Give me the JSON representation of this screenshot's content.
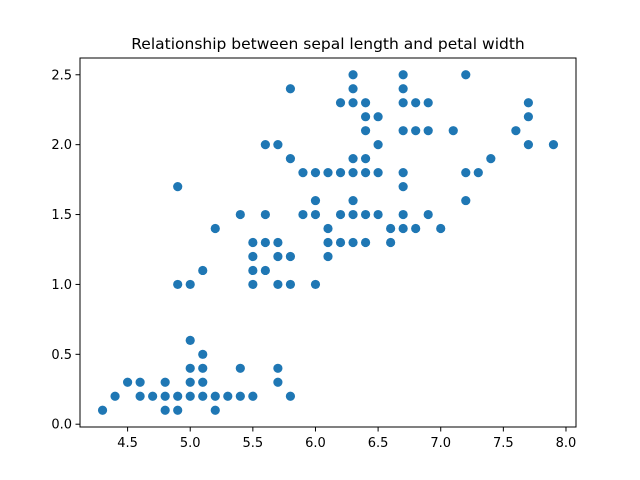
{
  "chart_data": {
    "type": "scatter",
    "title": "Relationship between sepal length and petal width",
    "xlabel": "",
    "ylabel": "",
    "xlim": [
      4.12,
      8.08
    ],
    "ylim": [
      -0.02,
      2.62
    ],
    "xticks": [
      4.5,
      5.0,
      5.5,
      6.0,
      6.5,
      7.0,
      7.5,
      8.0
    ],
    "xtick_labels": [
      "4.5",
      "5.0",
      "5.5",
      "6.0",
      "6.5",
      "7.0",
      "7.5",
      "8.0"
    ],
    "yticks": [
      0.0,
      0.5,
      1.0,
      1.5,
      2.0,
      2.5
    ],
    "ytick_labels": [
      "0.0",
      "0.5",
      "1.0",
      "1.5",
      "2.0",
      "2.5"
    ],
    "grid": false,
    "color": "#1f77b4",
    "series": [
      {
        "points": [
          [
            4.3,
            0.1
          ],
          [
            4.4,
            0.2
          ],
          [
            4.5,
            0.3
          ],
          [
            4.6,
            0.2
          ],
          [
            4.6,
            0.3
          ],
          [
            4.7,
            0.2
          ],
          [
            4.8,
            0.1
          ],
          [
            4.8,
            0.2
          ],
          [
            4.8,
            0.3
          ],
          [
            4.9,
            0.1
          ],
          [
            4.9,
            0.2
          ],
          [
            5.0,
            0.2
          ],
          [
            5.0,
            0.3
          ],
          [
            5.0,
            0.4
          ],
          [
            5.0,
            0.6
          ],
          [
            5.1,
            0.2
          ],
          [
            5.1,
            0.3
          ],
          [
            5.1,
            0.4
          ],
          [
            5.1,
            0.5
          ],
          [
            5.2,
            0.1
          ],
          [
            5.2,
            0.2
          ],
          [
            5.3,
            0.2
          ],
          [
            5.4,
            0.2
          ],
          [
            5.4,
            0.4
          ],
          [
            5.5,
            0.2
          ],
          [
            5.7,
            0.3
          ],
          [
            5.7,
            0.4
          ],
          [
            5.8,
            0.2
          ],
          [
            4.9,
            1.0
          ],
          [
            5.0,
            1.0
          ],
          [
            5.1,
            1.1
          ],
          [
            5.5,
            1.0
          ],
          [
            5.5,
            1.1
          ],
          [
            5.5,
            1.2
          ],
          [
            5.5,
            1.3
          ],
          [
            5.6,
            1.1
          ],
          [
            5.6,
            1.3
          ],
          [
            5.7,
            1.0
          ],
          [
            5.7,
            1.2
          ],
          [
            5.7,
            1.3
          ],
          [
            5.8,
            1.0
          ],
          [
            5.8,
            1.2
          ],
          [
            6.0,
            1.0
          ],
          [
            6.1,
            1.2
          ],
          [
            6.1,
            1.3
          ],
          [
            6.1,
            1.4
          ],
          [
            6.2,
            1.3
          ],
          [
            6.3,
            1.3
          ],
          [
            6.4,
            1.3
          ],
          [
            6.6,
            1.3
          ],
          [
            6.6,
            1.4
          ],
          [
            6.7,
            1.4
          ],
          [
            6.8,
            1.4
          ],
          [
            7.0,
            1.4
          ],
          [
            5.2,
            1.4
          ],
          [
            6.3,
            1.6
          ],
          [
            5.4,
            1.5
          ],
          [
            5.6,
            1.5
          ],
          [
            5.9,
            1.5
          ],
          [
            6.0,
            1.5
          ],
          [
            6.2,
            1.5
          ],
          [
            6.3,
            1.5
          ],
          [
            6.4,
            1.5
          ],
          [
            6.5,
            1.5
          ],
          [
            6.7,
            1.5
          ],
          [
            6.9,
            1.5
          ],
          [
            6.0,
            1.6
          ],
          [
            7.2,
            1.6
          ],
          [
            4.9,
            1.7
          ],
          [
            6.7,
            1.7
          ],
          [
            5.9,
            1.8
          ],
          [
            6.0,
            1.8
          ],
          [
            6.1,
            1.8
          ],
          [
            6.2,
            1.8
          ],
          [
            6.3,
            1.8
          ],
          [
            6.4,
            1.8
          ],
          [
            6.5,
            1.8
          ],
          [
            6.7,
            1.8
          ],
          [
            7.2,
            1.8
          ],
          [
            7.3,
            1.8
          ],
          [
            5.8,
            1.9
          ],
          [
            6.3,
            1.9
          ],
          [
            6.4,
            1.9
          ],
          [
            7.4,
            1.9
          ],
          [
            5.6,
            2.0
          ],
          [
            5.7,
            2.0
          ],
          [
            6.5,
            2.0
          ],
          [
            7.7,
            2.0
          ],
          [
            7.9,
            2.0
          ],
          [
            6.4,
            2.1
          ],
          [
            6.7,
            2.1
          ],
          [
            6.8,
            2.1
          ],
          [
            6.9,
            2.1
          ],
          [
            7.1,
            2.1
          ],
          [
            7.6,
            2.1
          ],
          [
            6.4,
            2.2
          ],
          [
            6.5,
            2.2
          ],
          [
            7.7,
            2.2
          ],
          [
            6.2,
            2.3
          ],
          [
            6.3,
            2.3
          ],
          [
            6.4,
            2.3
          ],
          [
            6.7,
            2.3
          ],
          [
            6.8,
            2.3
          ],
          [
            6.9,
            2.3
          ],
          [
            7.7,
            2.3
          ],
          [
            5.8,
            2.4
          ],
          [
            6.3,
            2.4
          ],
          [
            6.7,
            2.4
          ],
          [
            6.3,
            2.5
          ],
          [
            6.7,
            2.5
          ],
          [
            7.2,
            2.5
          ]
        ]
      }
    ]
  }
}
